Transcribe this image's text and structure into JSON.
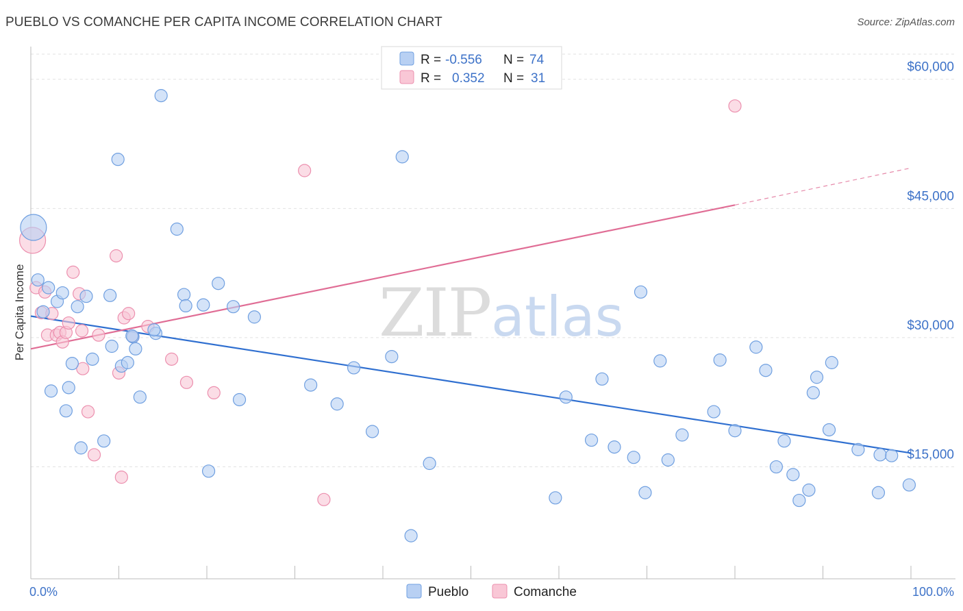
{
  "title": "PUEBLO VS COMANCHE PER CAPITA INCOME CORRELATION CHART",
  "source": "Source: ZipAtlas.com",
  "watermark": {
    "zip": "ZIP",
    "atlas": "atlas"
  },
  "colors": {
    "pueblo_fill": "#b8d0f3",
    "pueblo_stroke": "#6f9fe0",
    "pueblo_line": "#2f6fd0",
    "comanche_fill": "#f9c7d6",
    "comanche_stroke": "#ec8fae",
    "comanche_line": "#e06d95",
    "grid": "#e2e2e2",
    "tick_text": "#3d72c8"
  },
  "legend": {
    "pueblo": {
      "r_label": "R =",
      "r_value": "-0.556",
      "n_label": "N =",
      "n_value": "74"
    },
    "comanche": {
      "r_label": "R =",
      "r_value": "0.352",
      "n_label": "N =",
      "n_value": "31"
    }
  },
  "chart_data": {
    "type": "scatter",
    "title": "PUEBLO VS COMANCHE PER CAPITA INCOME CORRELATION CHART",
    "xlabel": "",
    "ylabel": "Per Capita Income",
    "xlim": [
      0,
      100
    ],
    "ylim": [
      2000,
      63000
    ],
    "x_tick_labels": [
      {
        "value": 0,
        "label": "0.0%"
      },
      {
        "value": 100,
        "label": "100.0%"
      }
    ],
    "y_ticks": [
      {
        "value": 15000,
        "label": "$15,000"
      },
      {
        "value": 30000,
        "label": "$30,000"
      },
      {
        "value": 45000,
        "label": "$45,000"
      },
      {
        "value": 60000,
        "label": "$60,000"
      }
    ],
    "grid": true,
    "legend_position": "top-center",
    "series": [
      {
        "name": "Pueblo",
        "points": [
          {
            "x": 0.3,
            "y": 42800,
            "size": "large"
          },
          {
            "x": 0.8,
            "y": 36700
          },
          {
            "x": 1.4,
            "y": 33000
          },
          {
            "x": 2.0,
            "y": 35800
          },
          {
            "x": 2.3,
            "y": 23800
          },
          {
            "x": 3.0,
            "y": 34200
          },
          {
            "x": 3.6,
            "y": 35200
          },
          {
            "x": 4.0,
            "y": 21500
          },
          {
            "x": 4.3,
            "y": 24200
          },
          {
            "x": 4.7,
            "y": 27000
          },
          {
            "x": 5.3,
            "y": 33600
          },
          {
            "x": 5.7,
            "y": 17200
          },
          {
            "x": 6.3,
            "y": 34800
          },
          {
            "x": 7.0,
            "y": 27500
          },
          {
            "x": 8.3,
            "y": 18000
          },
          {
            "x": 9.0,
            "y": 34900
          },
          {
            "x": 9.2,
            "y": 29000
          },
          {
            "x": 9.9,
            "y": 50700
          },
          {
            "x": 10.3,
            "y": 26700
          },
          {
            "x": 11.0,
            "y": 27100
          },
          {
            "x": 11.6,
            "y": 30100
          },
          {
            "x": 11.9,
            "y": 28700
          },
          {
            "x": 12.4,
            "y": 23100
          },
          {
            "x": 14.2,
            "y": 30500
          },
          {
            "x": 14.8,
            "y": 58100
          },
          {
            "x": 16.6,
            "y": 42600
          },
          {
            "x": 17.4,
            "y": 35000
          },
          {
            "x": 17.6,
            "y": 33700
          },
          {
            "x": 19.6,
            "y": 33800
          },
          {
            "x": 20.2,
            "y": 14500
          },
          {
            "x": 21.3,
            "y": 36300
          },
          {
            "x": 23.0,
            "y": 33600
          },
          {
            "x": 23.7,
            "y": 22800
          },
          {
            "x": 25.4,
            "y": 32400
          },
          {
            "x": 31.8,
            "y": 24500
          },
          {
            "x": 34.8,
            "y": 22300
          },
          {
            "x": 36.7,
            "y": 26500
          },
          {
            "x": 38.8,
            "y": 19100
          },
          {
            "x": 41.0,
            "y": 27800
          },
          {
            "x": 42.2,
            "y": 51000
          },
          {
            "x": 43.2,
            "y": 7000
          },
          {
            "x": 45.3,
            "y": 15400
          },
          {
            "x": 59.6,
            "y": 11400
          },
          {
            "x": 60.8,
            "y": 23100
          },
          {
            "x": 63.7,
            "y": 18100
          },
          {
            "x": 64.9,
            "y": 25200
          },
          {
            "x": 66.3,
            "y": 17300
          },
          {
            "x": 68.5,
            "y": 16100
          },
          {
            "x": 69.3,
            "y": 35300
          },
          {
            "x": 69.8,
            "y": 12000
          },
          {
            "x": 71.5,
            "y": 27300
          },
          {
            "x": 72.4,
            "y": 15800
          },
          {
            "x": 74.0,
            "y": 18700
          },
          {
            "x": 77.6,
            "y": 21400
          },
          {
            "x": 78.3,
            "y": 27400
          },
          {
            "x": 80.0,
            "y": 19200
          },
          {
            "x": 82.4,
            "y": 28900
          },
          {
            "x": 83.5,
            "y": 26200
          },
          {
            "x": 84.7,
            "y": 15000
          },
          {
            "x": 85.6,
            "y": 18000
          },
          {
            "x": 86.6,
            "y": 14100
          },
          {
            "x": 87.3,
            "y": 11100
          },
          {
            "x": 88.4,
            "y": 12300
          },
          {
            "x": 88.9,
            "y": 23600
          },
          {
            "x": 89.3,
            "y": 25400
          },
          {
            "x": 90.7,
            "y": 19300
          },
          {
            "x": 91.0,
            "y": 27100
          },
          {
            "x": 94.0,
            "y": 17000
          },
          {
            "x": 96.3,
            "y": 12000
          },
          {
            "x": 96.5,
            "y": 16400
          },
          {
            "x": 97.8,
            "y": 16300
          },
          {
            "x": 99.8,
            "y": 12900
          },
          {
            "x": 14.0,
            "y": 30900
          },
          {
            "x": 11.5,
            "y": 30200
          }
        ],
        "trend": {
          "x": [
            0,
            100
          ],
          "y": [
            32500,
            16600
          ],
          "style": "solid"
        }
      },
      {
        "name": "Comanche",
        "points": [
          {
            "x": 0.2,
            "y": 41300,
            "size": "large"
          },
          {
            "x": 0.6,
            "y": 35800
          },
          {
            "x": 1.2,
            "y": 32900
          },
          {
            "x": 1.6,
            "y": 35300
          },
          {
            "x": 1.9,
            "y": 30300
          },
          {
            "x": 2.4,
            "y": 32800
          },
          {
            "x": 2.9,
            "y": 30300
          },
          {
            "x": 3.3,
            "y": 30600
          },
          {
            "x": 3.6,
            "y": 29500
          },
          {
            "x": 4.0,
            "y": 30600
          },
          {
            "x": 4.3,
            "y": 31700
          },
          {
            "x": 4.8,
            "y": 37600
          },
          {
            "x": 5.5,
            "y": 35100
          },
          {
            "x": 5.8,
            "y": 30800
          },
          {
            "x": 5.9,
            "y": 26400
          },
          {
            "x": 6.5,
            "y": 21400
          },
          {
            "x": 7.2,
            "y": 16400
          },
          {
            "x": 7.7,
            "y": 30300
          },
          {
            "x": 9.7,
            "y": 39500
          },
          {
            "x": 10.0,
            "y": 25900
          },
          {
            "x": 10.3,
            "y": 13800
          },
          {
            "x": 10.6,
            "y": 32300
          },
          {
            "x": 11.1,
            "y": 32800
          },
          {
            "x": 11.6,
            "y": 30100
          },
          {
            "x": 13.3,
            "y": 31300
          },
          {
            "x": 16.0,
            "y": 27500
          },
          {
            "x": 17.7,
            "y": 24800
          },
          {
            "x": 20.8,
            "y": 23600
          },
          {
            "x": 31.1,
            "y": 49400
          },
          {
            "x": 33.3,
            "y": 11200
          },
          {
            "x": 80.0,
            "y": 56900
          }
        ],
        "trend": {
          "x": [
            0,
            80,
            100
          ],
          "y": [
            28700,
            45400,
            49700
          ],
          "style": "solid-then-dashed",
          "dash_from_x": 80
        }
      }
    ]
  },
  "bottom_legend": {
    "pueblo": "Pueblo",
    "comanche": "Comanche"
  }
}
